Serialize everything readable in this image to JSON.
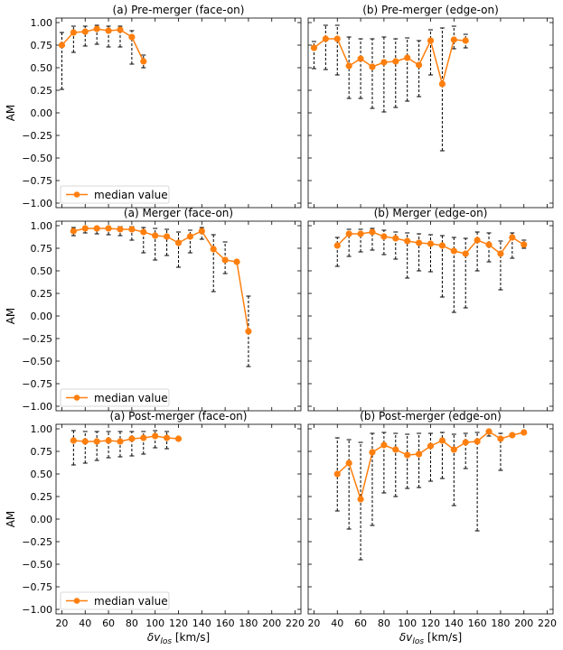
{
  "figure": {
    "ylabel": "AM",
    "xlabel_prefix": "δv",
    "xlabel_sub": "los",
    "xlabel_suffix": " [km/s]",
    "legend_label": "median value",
    "line_color": "#ff7f0e",
    "xticks": [
      "20",
      "40",
      "60",
      "80",
      "100",
      "120",
      "140",
      "160",
      "180",
      "200",
      "220"
    ],
    "yticks": [
      "1.00",
      "0.75",
      "0.50",
      "0.25",
      "0.00",
      "−0.25",
      "−0.50",
      "−0.75",
      "−1.00"
    ]
  },
  "chart_data": [
    {
      "type": "line",
      "title": "(a) Pre-merger (face-on)",
      "xlabel": "δv_los [km/s]",
      "ylabel": "AM",
      "xlim": [
        15,
        225
      ],
      "ylim": [
        -1.05,
        1.05
      ],
      "legend": "lower-left",
      "x": [
        20,
        30,
        40,
        50,
        60,
        70,
        80,
        90
      ],
      "median": [
        0.75,
        0.89,
        0.9,
        0.93,
        0.91,
        0.92,
        0.84,
        0.57
      ],
      "err_low": [
        0.26,
        0.67,
        0.74,
        0.76,
        0.73,
        0.73,
        0.54,
        0.5
      ],
      "err_high": [
        0.89,
        0.96,
        0.96,
        0.97,
        0.96,
        0.96,
        0.91,
        0.64
      ]
    },
    {
      "type": "line",
      "title": "(b) Pre-merger (edge-on)",
      "xlabel": "δv_los [km/s]",
      "ylabel": "",
      "xlim": [
        15,
        225
      ],
      "ylim": [
        -1.05,
        1.05
      ],
      "x": [
        20,
        30,
        40,
        50,
        60,
        70,
        80,
        90,
        100,
        110,
        120,
        130,
        140,
        150
      ],
      "median": [
        0.72,
        0.82,
        0.82,
        0.52,
        0.6,
        0.51,
        0.56,
        0.57,
        0.61,
        0.53,
        0.8,
        0.32,
        0.81,
        0.8
      ],
      "err_low": [
        0.49,
        0.48,
        0.42,
        0.16,
        0.16,
        0.05,
        0.01,
        0.06,
        0.13,
        0.18,
        0.42,
        -0.42,
        0.71,
        0.72
      ],
      "err_high": [
        0.79,
        0.97,
        0.97,
        0.84,
        0.82,
        0.82,
        0.84,
        0.82,
        0.83,
        0.8,
        0.92,
        0.94,
        0.96,
        0.87
      ]
    },
    {
      "type": "line",
      "title": "(a) Merger (face-on)",
      "xlabel": "δv_los [km/s]",
      "ylabel": "AM",
      "xlim": [
        15,
        225
      ],
      "ylim": [
        -1.05,
        1.05
      ],
      "legend": "lower-left",
      "x": [
        30,
        40,
        50,
        60,
        70,
        80,
        90,
        100,
        110,
        120,
        130,
        140,
        150,
        160,
        170,
        180
      ],
      "median": [
        0.94,
        0.97,
        0.97,
        0.97,
        0.96,
        0.96,
        0.93,
        0.89,
        0.88,
        0.81,
        0.88,
        0.94,
        0.74,
        0.62,
        0.6,
        -0.17
      ],
      "err_low": [
        0.89,
        0.92,
        0.91,
        0.9,
        0.89,
        0.84,
        0.7,
        0.62,
        0.67,
        0.54,
        0.7,
        0.85,
        0.27,
        0.47,
        0.6,
        -0.56
      ],
      "err_high": [
        0.98,
        0.99,
        0.99,
        0.99,
        0.99,
        0.99,
        0.98,
        0.97,
        0.96,
        0.93,
        0.95,
        0.98,
        0.9,
        0.82,
        0.6,
        0.22
      ]
    },
    {
      "type": "line",
      "title": "(b) Merger (edge-on)",
      "xlabel": "δv_los [km/s]",
      "ylabel": "",
      "xlim": [
        15,
        225
      ],
      "ylim": [
        -1.05,
        1.05
      ],
      "x": [
        40,
        50,
        60,
        70,
        80,
        90,
        100,
        110,
        120,
        130,
        140,
        150,
        160,
        170,
        180,
        190,
        200
      ],
      "median": [
        0.78,
        0.91,
        0.91,
        0.93,
        0.88,
        0.86,
        0.83,
        0.81,
        0.8,
        0.78,
        0.72,
        0.69,
        0.84,
        0.79,
        0.69,
        0.87,
        0.79
      ],
      "err_low": [
        0.55,
        0.66,
        0.71,
        0.73,
        0.68,
        0.63,
        0.42,
        0.5,
        0.49,
        0.21,
        0.04,
        0.09,
        0.5,
        0.6,
        0.29,
        0.64,
        0.75
      ],
      "err_high": [
        0.87,
        0.96,
        0.96,
        0.97,
        0.95,
        0.93,
        0.92,
        0.91,
        0.9,
        0.89,
        0.87,
        0.86,
        0.93,
        0.92,
        0.83,
        0.92,
        0.84
      ]
    },
    {
      "type": "line",
      "title": "(a) Post-merger (face-on)",
      "xlabel": "δv_los [km/s]",
      "ylabel": "AM",
      "xlim": [
        15,
        225
      ],
      "ylim": [
        -1.05,
        1.05
      ],
      "legend": "lower-left",
      "x": [
        30,
        40,
        50,
        60,
        70,
        80,
        90,
        100,
        110,
        120
      ],
      "median": [
        0.87,
        0.86,
        0.86,
        0.87,
        0.86,
        0.89,
        0.9,
        0.92,
        0.9,
        0.89
      ],
      "err_low": [
        0.6,
        0.62,
        0.65,
        0.68,
        0.69,
        0.7,
        0.72,
        0.79,
        0.78,
        0.89
      ],
      "err_high": [
        0.98,
        0.97,
        0.97,
        0.97,
        0.97,
        0.97,
        0.97,
        0.98,
        0.97,
        0.89
      ]
    },
    {
      "type": "line",
      "title": "(b) Post-merger (edge-on)",
      "xlabel": "δv_los [km/s]",
      "ylabel": "",
      "xlim": [
        15,
        225
      ],
      "ylim": [
        -1.05,
        1.05
      ],
      "x": [
        40,
        50,
        60,
        70,
        80,
        90,
        100,
        110,
        120,
        130,
        140,
        150,
        160,
        170,
        180,
        190,
        200
      ],
      "median": [
        0.5,
        0.62,
        0.22,
        0.74,
        0.82,
        0.77,
        0.71,
        0.72,
        0.81,
        0.87,
        0.77,
        0.85,
        0.86,
        0.97,
        0.89,
        0.93,
        0.96
      ],
      "err_low": [
        0.09,
        -0.11,
        -0.45,
        -0.07,
        0.29,
        0.25,
        0.34,
        0.35,
        0.42,
        0.45,
        0.15,
        0.56,
        -0.13,
        0.92,
        0.54,
        0.93,
        0.96
      ],
      "err_high": [
        0.9,
        0.88,
        0.85,
        0.95,
        0.96,
        0.95,
        0.94,
        0.95,
        0.95,
        0.96,
        0.94,
        0.95,
        0.96,
        0.99,
        0.95,
        0.93,
        0.96
      ]
    }
  ]
}
